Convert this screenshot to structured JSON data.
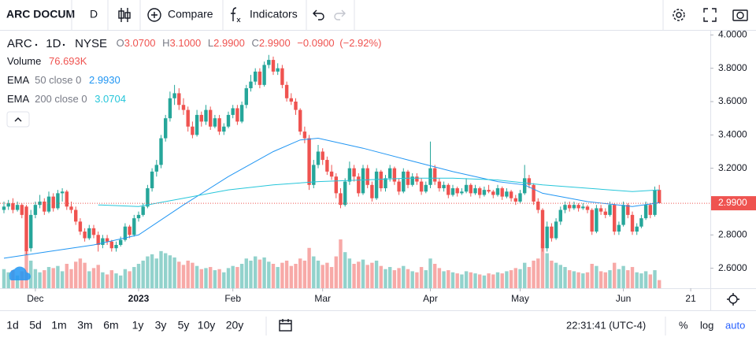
{
  "toolbar": {
    "symbol": "ARC DOCUM",
    "interval": "D",
    "compare": "Compare",
    "indicators": "Indicators"
  },
  "chart_data": {
    "type": "candlestick",
    "symbol": "ARC",
    "interval": "1D",
    "exchange": "NYSE",
    "ohlc_labels": [
      "O",
      "H",
      "L",
      "C"
    ],
    "ohlc": [
      {
        "value": 3.07,
        "label": "3.0700"
      },
      {
        "value": 3.1,
        "label": "3.1000"
      },
      {
        "value": 2.99,
        "label": "2.9900"
      },
      {
        "value": 2.99,
        "label": "2.9900"
      }
    ],
    "change": {
      "value": -0.09,
      "label": "−0.0900"
    },
    "change_pct": {
      "value": -2.92,
      "label": "(−2.92%)"
    },
    "volume_name": "Volume",
    "volume_last": {
      "value": 76.693,
      "label": "76.693K"
    },
    "up_color": "#26a69a",
    "down_color": "#ef5350",
    "last_price": {
      "value": 2.99,
      "label": "2.9900"
    },
    "ylim": [
      2.48,
      4.03
    ],
    "yticks": [
      {
        "value": 2.6,
        "label": "2.6000"
      },
      {
        "value": 2.8,
        "label": "2.8000"
      },
      {
        "value": 3.2,
        "label": "3.2000"
      },
      {
        "value": 3.4,
        "label": "3.4000"
      },
      {
        "value": 3.6,
        "label": "3.6000"
      },
      {
        "value": 3.8,
        "label": "3.8000"
      },
      {
        "value": 4.0,
        "label": "4.0000"
      }
    ],
    "xticks": [
      {
        "value": 7,
        "label": "Dec"
      },
      {
        "value": 30,
        "label": "2023"
      },
      {
        "value": 51,
        "label": "Feb"
      },
      {
        "value": 71,
        "label": "Mar"
      },
      {
        "value": 95,
        "label": "Apr"
      },
      {
        "value": 115,
        "label": "May"
      },
      {
        "value": 138,
        "label": "Jun"
      },
      {
        "value": 153,
        "label": "21"
      }
    ],
    "candles": [
      [
        2.95,
        3.0,
        2.93,
        2.97,
        180
      ],
      [
        2.97,
        3.01,
        2.95,
        2.99,
        150
      ],
      [
        2.99,
        3.02,
        2.93,
        2.95,
        170
      ],
      [
        2.95,
        3.0,
        2.94,
        2.98,
        120
      ],
      [
        2.98,
        2.99,
        2.9,
        2.92,
        160
      ],
      [
        2.97,
        2.98,
        2.68,
        2.7,
        340
      ],
      [
        2.72,
        2.95,
        2.7,
        2.92,
        260
      ],
      [
        2.92,
        3.0,
        2.9,
        2.98,
        180
      ],
      [
        2.98,
        3.04,
        2.96,
        3.0,
        150
      ],
      [
        3.0,
        3.02,
        2.92,
        2.94,
        170
      ],
      [
        2.94,
        3.06,
        2.93,
        3.03,
        200
      ],
      [
        3.03,
        3.05,
        2.94,
        2.96,
        190
      ],
      [
        2.96,
        3.07,
        2.95,
        3.05,
        210
      ],
      [
        3.05,
        3.08,
        3.0,
        3.06,
        160
      ],
      [
        3.06,
        3.07,
        2.95,
        2.97,
        230
      ],
      [
        2.97,
        3.0,
        2.93,
        2.95,
        180
      ],
      [
        2.95,
        2.97,
        2.86,
        2.88,
        250
      ],
      [
        2.88,
        2.9,
        2.8,
        2.82,
        280
      ],
      [
        2.82,
        2.84,
        2.76,
        2.78,
        240
      ],
      [
        2.78,
        2.86,
        2.77,
        2.84,
        160
      ],
      [
        2.84,
        2.86,
        2.78,
        2.8,
        190
      ],
      [
        2.8,
        2.82,
        2.7,
        2.74,
        220
      ],
      [
        2.74,
        2.8,
        2.72,
        2.78,
        150
      ],
      [
        2.78,
        2.8,
        2.74,
        2.76,
        130
      ],
      [
        2.76,
        2.77,
        2.7,
        2.72,
        170
      ],
      [
        2.72,
        2.76,
        2.7,
        2.74,
        140
      ],
      [
        2.74,
        2.79,
        2.73,
        2.77,
        120
      ],
      [
        2.77,
        2.87,
        2.76,
        2.85,
        180
      ],
      [
        2.85,
        2.86,
        2.78,
        2.8,
        160
      ],
      [
        2.8,
        2.92,
        2.79,
        2.9,
        200
      ],
      [
        2.9,
        2.94,
        2.88,
        2.92,
        230
      ],
      [
        2.92,
        2.99,
        2.91,
        2.97,
        260
      ],
      [
        2.97,
        3.1,
        2.96,
        3.08,
        300
      ],
      [
        3.08,
        3.2,
        3.06,
        3.18,
        320
      ],
      [
        3.18,
        3.25,
        3.15,
        3.22,
        280
      ],
      [
        3.22,
        3.4,
        3.2,
        3.38,
        350
      ],
      [
        3.38,
        3.52,
        3.36,
        3.5,
        330
      ],
      [
        3.5,
        3.66,
        3.48,
        3.62,
        310
      ],
      [
        3.62,
        3.7,
        3.58,
        3.65,
        290
      ],
      [
        3.65,
        3.68,
        3.55,
        3.58,
        250
      ],
      [
        3.58,
        3.62,
        3.52,
        3.55,
        220
      ],
      [
        3.55,
        3.57,
        3.42,
        3.45,
        260
      ],
      [
        3.45,
        3.48,
        3.38,
        3.4,
        240
      ],
      [
        3.4,
        3.55,
        3.39,
        3.52,
        210
      ],
      [
        3.52,
        3.54,
        3.45,
        3.48,
        180
      ],
      [
        3.48,
        3.58,
        3.46,
        3.55,
        190
      ],
      [
        3.55,
        3.57,
        3.43,
        3.45,
        200
      ],
      [
        3.45,
        3.52,
        3.44,
        3.5,
        170
      ],
      [
        3.5,
        3.52,
        3.4,
        3.42,
        180
      ],
      [
        3.42,
        3.47,
        3.4,
        3.45,
        150
      ],
      [
        3.45,
        3.54,
        3.44,
        3.52,
        190
      ],
      [
        3.52,
        3.58,
        3.5,
        3.56,
        210
      ],
      [
        3.56,
        3.58,
        3.46,
        3.48,
        200
      ],
      [
        3.48,
        3.6,
        3.47,
        3.58,
        230
      ],
      [
        3.58,
        3.7,
        3.56,
        3.68,
        280
      ],
      [
        3.68,
        3.76,
        3.66,
        3.72,
        260
      ],
      [
        3.72,
        3.8,
        3.7,
        3.78,
        300
      ],
      [
        3.78,
        3.8,
        3.68,
        3.7,
        270
      ],
      [
        3.7,
        3.84,
        3.69,
        3.82,
        290
      ],
      [
        3.82,
        3.88,
        3.8,
        3.85,
        250
      ],
      [
        3.85,
        3.87,
        3.76,
        3.78,
        230
      ],
      [
        3.78,
        3.83,
        3.76,
        3.8,
        200
      ],
      [
        3.8,
        3.82,
        3.68,
        3.7,
        240
      ],
      [
        3.7,
        3.72,
        3.6,
        3.62,
        260
      ],
      [
        3.62,
        3.65,
        3.58,
        3.6,
        210
      ],
      [
        3.6,
        3.62,
        3.52,
        3.55,
        230
      ],
      [
        3.55,
        3.56,
        3.4,
        3.42,
        280
      ],
      [
        3.42,
        3.45,
        3.35,
        3.38,
        260
      ],
      [
        3.38,
        3.4,
        3.07,
        3.1,
        380
      ],
      [
        3.1,
        3.25,
        3.08,
        3.22,
        300
      ],
      [
        3.22,
        3.34,
        3.2,
        3.3,
        260
      ],
      [
        3.3,
        3.32,
        3.22,
        3.25,
        220
      ],
      [
        3.25,
        3.27,
        3.16,
        3.18,
        240
      ],
      [
        3.18,
        3.22,
        3.13,
        3.15,
        200
      ],
      [
        3.15,
        3.17,
        3.02,
        3.05,
        300
      ],
      [
        3.05,
        3.08,
        2.96,
        2.98,
        460
      ],
      [
        2.98,
        3.14,
        2.97,
        3.12,
        340
      ],
      [
        3.12,
        3.24,
        3.1,
        3.2,
        280
      ],
      [
        3.2,
        3.22,
        3.12,
        3.15,
        230
      ],
      [
        3.15,
        3.17,
        3.03,
        3.05,
        250
      ],
      [
        3.05,
        3.22,
        3.04,
        3.2,
        270
      ],
      [
        3.2,
        3.22,
        3.08,
        3.1,
        220
      ],
      [
        3.1,
        3.12,
        3.0,
        3.02,
        240
      ],
      [
        3.02,
        3.2,
        3.01,
        3.18,
        260
      ],
      [
        3.18,
        3.19,
        3.06,
        3.08,
        210
      ],
      [
        3.08,
        3.16,
        3.06,
        3.14,
        180
      ],
      [
        3.14,
        3.22,
        3.12,
        3.2,
        200
      ],
      [
        3.2,
        3.21,
        3.1,
        3.12,
        170
      ],
      [
        3.12,
        3.14,
        3.04,
        3.06,
        190
      ],
      [
        3.06,
        3.2,
        3.05,
        3.18,
        210
      ],
      [
        3.18,
        3.19,
        3.08,
        3.1,
        180
      ],
      [
        3.1,
        3.17,
        3.09,
        3.15,
        160
      ],
      [
        3.15,
        3.17,
        3.1,
        3.12,
        150
      ],
      [
        3.12,
        3.14,
        3.04,
        3.06,
        200
      ],
      [
        3.06,
        3.12,
        3.05,
        3.1,
        170
      ],
      [
        3.1,
        3.36,
        3.08,
        3.2,
        280
      ],
      [
        3.2,
        3.22,
        3.1,
        3.12,
        230
      ],
      [
        3.12,
        3.14,
        3.06,
        3.08,
        190
      ],
      [
        3.08,
        3.12,
        3.06,
        3.1,
        160
      ],
      [
        3.1,
        3.11,
        3.02,
        3.04,
        170
      ],
      [
        3.04,
        3.1,
        3.03,
        3.08,
        150
      ],
      [
        3.08,
        3.09,
        3.03,
        3.05,
        140
      ],
      [
        3.05,
        3.08,
        3.04,
        3.06,
        130
      ],
      [
        3.06,
        3.14,
        3.05,
        3.1,
        160
      ],
      [
        3.1,
        3.11,
        3.03,
        3.05,
        150
      ],
      [
        3.05,
        3.1,
        3.04,
        3.08,
        140
      ],
      [
        3.08,
        3.09,
        3.02,
        3.04,
        130
      ],
      [
        3.04,
        3.09,
        3.03,
        3.07,
        120
      ],
      [
        3.07,
        3.1,
        3.05,
        3.06,
        140
      ],
      [
        3.06,
        3.07,
        3.02,
        3.04,
        130
      ],
      [
        3.04,
        3.1,
        3.03,
        3.08,
        150
      ],
      [
        3.08,
        3.09,
        3.01,
        3.03,
        140
      ],
      [
        3.03,
        3.08,
        3.02,
        3.06,
        160
      ],
      [
        3.06,
        3.07,
        3.0,
        3.02,
        170
      ],
      [
        3.02,
        3.04,
        2.98,
        3.0,
        190
      ],
      [
        3.0,
        3.07,
        2.99,
        3.05,
        180
      ],
      [
        3.05,
        3.22,
        3.04,
        3.14,
        240
      ],
      [
        3.14,
        3.16,
        3.08,
        3.1,
        200
      ],
      [
        3.1,
        3.11,
        2.98,
        3.0,
        260
      ],
      [
        3.0,
        3.02,
        2.93,
        2.95,
        280
      ],
      [
        2.95,
        2.96,
        2.7,
        2.72,
        420
      ],
      [
        2.72,
        2.88,
        2.7,
        2.85,
        330
      ],
      [
        2.85,
        2.87,
        2.76,
        2.78,
        260
      ],
      [
        2.78,
        2.9,
        2.77,
        2.88,
        240
      ],
      [
        2.88,
        2.97,
        2.86,
        2.95,
        220
      ],
      [
        2.95,
        3.0,
        2.93,
        2.98,
        200
      ],
      [
        2.98,
        3.0,
        2.94,
        2.96,
        170
      ],
      [
        2.96,
        3.0,
        2.95,
        2.98,
        160
      ],
      [
        2.98,
        2.99,
        2.94,
        2.96,
        150
      ],
      [
        2.96,
        2.99,
        2.95,
        2.97,
        140
      ],
      [
        2.97,
        2.98,
        2.93,
        2.95,
        150
      ],
      [
        2.95,
        2.96,
        2.8,
        2.82,
        230
      ],
      [
        2.82,
        2.98,
        2.81,
        2.96,
        210
      ],
      [
        2.96,
        2.98,
        2.92,
        2.94,
        160
      ],
      [
        2.94,
        2.96,
        2.9,
        2.92,
        150
      ],
      [
        2.92,
        3.0,
        2.91,
        2.98,
        170
      ],
      [
        2.98,
        2.99,
        2.8,
        2.82,
        240
      ],
      [
        2.82,
        2.88,
        2.8,
        2.86,
        180
      ],
      [
        2.86,
        3.0,
        2.85,
        2.98,
        210
      ],
      [
        2.98,
        2.99,
        2.9,
        2.92,
        170
      ],
      [
        2.92,
        2.94,
        2.8,
        2.82,
        200
      ],
      [
        2.82,
        2.87,
        2.8,
        2.85,
        150
      ],
      [
        2.85,
        2.92,
        2.84,
        2.9,
        140
      ],
      [
        2.9,
        3.0,
        2.89,
        2.98,
        160
      ],
      [
        2.98,
        2.99,
        2.9,
        2.92,
        130
      ],
      [
        2.92,
        3.09,
        2.91,
        3.07,
        170
      ],
      [
        3.07,
        3.1,
        2.99,
        2.99,
        76.693
      ]
    ],
    "ema50": {
      "name": "EMA",
      "params": "50 close 0",
      "color": "#2196f3",
      "last": {
        "value": 2.993,
        "label": "2.9930"
      },
      "x": [
        0,
        10,
        20,
        30,
        40,
        50,
        60,
        66,
        70,
        80,
        90,
        100,
        110,
        116,
        120,
        130,
        140,
        146
      ],
      "values": [
        2.66,
        2.7,
        2.74,
        2.8,
        2.98,
        3.15,
        3.3,
        3.37,
        3.38,
        3.32,
        3.25,
        3.18,
        3.12,
        3.1,
        3.05,
        3.0,
        2.97,
        2.993
      ]
    },
    "ema200": {
      "name": "EMA",
      "params": "200 close 0",
      "color": "#26c6da",
      "last": {
        "value": 3.0704,
        "label": "3.0704"
      },
      "x": [
        21,
        30,
        40,
        50,
        60,
        70,
        80,
        90,
        100,
        110,
        120,
        130,
        140,
        146
      ],
      "values": [
        2.98,
        2.97,
        3.02,
        3.07,
        3.1,
        3.12,
        3.13,
        3.14,
        3.14,
        3.13,
        3.1,
        3.08,
        3.06,
        3.0704
      ]
    }
  },
  "footer": {
    "ranges": [
      "1d",
      "5d",
      "1m",
      "3m",
      "6m",
      "1y",
      "3y",
      "5y",
      "10y",
      "20y"
    ],
    "time": "22:31:41 (UTC-4)",
    "percent": "%",
    "log": "log",
    "auto": "auto"
  }
}
